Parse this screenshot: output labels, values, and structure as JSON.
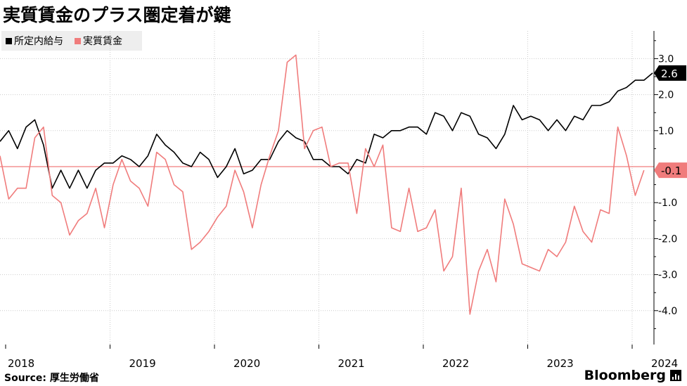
{
  "title": "実質賃金のプラス圏定着が鍵",
  "source_label": "Source:",
  "source_text": "厚生労働省",
  "brand": "Bloomberg",
  "chart_data": {
    "type": "line",
    "x_start": "2018-01",
    "x_labels": [
      "2018",
      "2019",
      "2020",
      "2021",
      "2022",
      "2023",
      "2024"
    ],
    "ylim": [
      -4.7,
      3.8
    ],
    "y_ticks": [
      3.0,
      2.0,
      1.0,
      -1.0,
      -2.0,
      -3.0,
      -4.0
    ],
    "y_tick_labels": [
      "3.0",
      "2.0",
      "1.0",
      "-1.0",
      "-2.0",
      "-3.0",
      "-4.0"
    ],
    "grid": true,
    "legend_position": "top-left",
    "series": [
      {
        "name": "所定内給与",
        "color": "#000000",
        "end_label": "2.6",
        "values": [
          0.7,
          1.0,
          0.5,
          1.1,
          1.3,
          0.6,
          -0.6,
          -0.1,
          -0.6,
          -0.1,
          -0.6,
          -0.1,
          0.1,
          0.1,
          0.3,
          0.2,
          0.0,
          0.3,
          0.9,
          0.6,
          0.4,
          0.1,
          0.0,
          0.4,
          0.2,
          -0.3,
          0.0,
          0.5,
          -0.2,
          -0.1,
          0.2,
          0.2,
          0.7,
          1.0,
          0.8,
          0.7,
          0.2,
          0.2,
          0.0,
          0.0,
          -0.2,
          0.2,
          0.1,
          0.9,
          0.8,
          1.0,
          1.0,
          1.1,
          1.1,
          0.9,
          1.5,
          1.4,
          1.0,
          1.5,
          1.4,
          0.9,
          0.8,
          0.5,
          0.9,
          1.7,
          1.3,
          1.4,
          1.3,
          1.0,
          1.3,
          1.0,
          1.4,
          1.3,
          1.7,
          1.7,
          1.8,
          2.1,
          2.2,
          2.4,
          2.4,
          2.6
        ]
      },
      {
        "name": "実質賃金",
        "color": "#f07c7c",
        "end_label": "-0.1",
        "values": [
          0.3,
          -0.9,
          -0.6,
          -0.6,
          0.8,
          1.1,
          -0.8,
          -1.0,
          -1.9,
          -1.5,
          -1.3,
          -0.6,
          -1.7,
          -0.5,
          0.2,
          -0.4,
          -0.6,
          -1.1,
          0.4,
          0.2,
          -0.5,
          -0.7,
          -2.3,
          -2.1,
          -1.8,
          -1.4,
          -1.1,
          -0.1,
          -0.7,
          -1.7,
          -0.5,
          0.3,
          1.0,
          2.9,
          3.1,
          0.5,
          1.0,
          1.1,
          0.0,
          0.1,
          0.1,
          -1.3,
          0.5,
          0.0,
          0.6,
          -1.7,
          -1.8,
          -0.6,
          -1.8,
          -1.7,
          -1.2,
          -2.9,
          -2.5,
          -0.6,
          -4.1,
          -2.9,
          -2.3,
          -3.2,
          -0.9,
          -1.6,
          -2.7,
          -2.8,
          -2.9,
          -2.3,
          -2.5,
          -2.1,
          -1.1,
          -1.8,
          -2.1,
          -1.2,
          -1.3,
          1.1,
          0.3,
          -0.8,
          -0.1
        ]
      }
    ]
  }
}
